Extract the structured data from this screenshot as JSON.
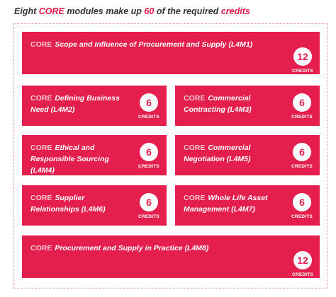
{
  "heading": {
    "w1": "Eight",
    "w2": "CORE",
    "w3": "modules make up",
    "w4": "60",
    "w5": "of the required",
    "w6": "credits"
  },
  "modules": [
    {
      "core": "CORE",
      "title": "Scope and Influence of Procurement and Supply (L4M1)",
      "credits": "12",
      "credits_label": "CREDITS"
    },
    {
      "core": "CORE",
      "title": "Defining Business Need (L4M2)",
      "credits": "6",
      "credits_label": "CREDITS"
    },
    {
      "core": "CORE",
      "title": "Commercial Contracting (L4M3)",
      "credits": "6",
      "credits_label": "CREDITS"
    },
    {
      "core": "CORE",
      "title": "Ethical and Responsible Sourcing (L4M4)",
      "credits": "6",
      "credits_label": "CREDITS"
    },
    {
      "core": "CORE",
      "title": "Commercial Negotiation (L4M5)",
      "credits": "6",
      "credits_label": "CREDITS"
    },
    {
      "core": "CORE",
      "title": "Supplier Relationships (L4M6)",
      "credits": "6",
      "credits_label": "CREDITS"
    },
    {
      "core": "CORE",
      "title": "Whole Life Asset Management (L4M7)",
      "credits": "6",
      "credits_label": "CREDITS"
    },
    {
      "core": "CORE",
      "title": "Procurement and Supply in Practice (L4M8)",
      "credits": "12",
      "credits_label": "CREDITS"
    }
  ],
  "colors": {
    "tile": "#e41f4d",
    "accent": "#e6174a"
  }
}
